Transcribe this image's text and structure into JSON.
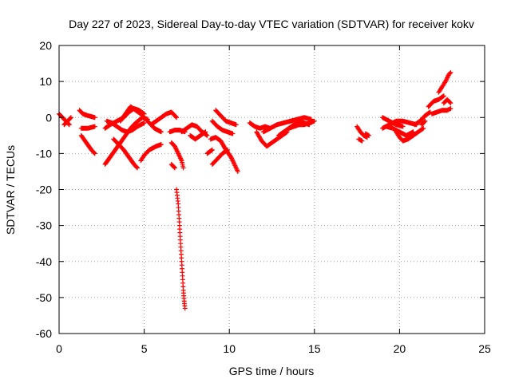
{
  "chart_data": {
    "type": "scatter",
    "title": "Day 227 of 2023, Sidereal Day-to-day VTEC variation (SDTVAR) for receiver kokv",
    "xlabel": "GPS time / hours",
    "ylabel": "SDTVAR / TECUs",
    "xlim": [
      0,
      25
    ],
    "ylim": [
      -60,
      20
    ],
    "xticks": [
      0,
      5,
      10,
      15,
      20,
      25
    ],
    "yticks": [
      -60,
      -50,
      -40,
      -30,
      -20,
      -10,
      0,
      10,
      20
    ],
    "grid": true,
    "marker": "+",
    "color": "#ff0000",
    "tracks": [
      [
        [
          0.0,
          1.0
        ],
        [
          0.2,
          0.0
        ],
        [
          0.4,
          -1.0
        ],
        [
          0.6,
          -2.0
        ]
      ],
      [
        [
          0.3,
          -2.0
        ],
        [
          0.5,
          -1.0
        ],
        [
          0.7,
          0.0
        ]
      ],
      [
        [
          1.2,
          2.0
        ],
        [
          1.4,
          1.0
        ],
        [
          1.7,
          0.5
        ],
        [
          2.1,
          0.0
        ]
      ],
      [
        [
          1.3,
          -3.0
        ],
        [
          1.7,
          -3.0
        ],
        [
          2.1,
          -2.5
        ]
      ],
      [
        [
          1.3,
          -5.0
        ],
        [
          1.6,
          -7.0
        ],
        [
          1.9,
          -9.0
        ],
        [
          2.1,
          -10.0
        ]
      ],
      [
        [
          2.7,
          -13.0
        ],
        [
          3.0,
          -11.0
        ],
        [
          3.3,
          -9.0
        ],
        [
          3.6,
          -7.0
        ],
        [
          3.9,
          -5.0
        ],
        [
          4.2,
          -3.0
        ],
        [
          4.5,
          -1.5
        ],
        [
          4.9,
          0.0
        ],
        [
          5.2,
          -0.5
        ]
      ],
      [
        [
          2.7,
          -3.0
        ],
        [
          3.0,
          -2.0
        ],
        [
          3.4,
          -1.0
        ],
        [
          3.8,
          0.0
        ],
        [
          4.1,
          1.5
        ],
        [
          4.4,
          2.5
        ],
        [
          4.7,
          2.0
        ],
        [
          5.0,
          1.0
        ]
      ],
      [
        [
          2.8,
          -1.0
        ],
        [
          3.1,
          -1.5
        ],
        [
          3.4,
          -2.5
        ],
        [
          3.7,
          -3.5
        ],
        [
          4.0,
          -4.0
        ],
        [
          4.3,
          -3.5
        ],
        [
          4.6,
          -2.5
        ],
        [
          5.0,
          -1.5
        ]
      ],
      [
        [
          3.2,
          -6.0
        ],
        [
          3.5,
          -7.5
        ],
        [
          3.8,
          -9.0
        ],
        [
          4.1,
          -11.0
        ],
        [
          4.4,
          -13.0
        ],
        [
          4.6,
          -14.0
        ]
      ],
      [
        [
          3.6,
          -1.0
        ],
        [
          3.9,
          1.0
        ],
        [
          4.2,
          3.0
        ],
        [
          4.5,
          2.0
        ],
        [
          4.8,
          1.0
        ],
        [
          5.2,
          -1.0
        ],
        [
          5.6,
          -3.0
        ],
        [
          6.0,
          -4.0
        ]
      ],
      [
        [
          4.8,
          -12.0
        ],
        [
          5.0,
          -10.5
        ],
        [
          5.3,
          -9.0
        ],
        [
          5.7,
          -8.0
        ],
        [
          6.0,
          -7.5
        ]
      ],
      [
        [
          5.4,
          -2.0
        ],
        [
          5.7,
          -1.0
        ],
        [
          6.0,
          0.0
        ],
        [
          6.3,
          1.0
        ],
        [
          6.6,
          1.5
        ],
        [
          6.9,
          0.0
        ]
      ],
      [
        [
          6.5,
          -4.0
        ],
        [
          6.8,
          -3.5
        ],
        [
          7.1,
          -3.5
        ],
        [
          7.4,
          -4.0
        ]
      ],
      [
        [
          6.6,
          -7.0
        ],
        [
          6.8,
          -8.0
        ],
        [
          7.0,
          -10.0
        ],
        [
          7.2,
          -12.0
        ],
        [
          7.3,
          -14.0
        ]
      ],
      [
        [
          6.6,
          -13.0
        ],
        [
          6.8,
          -14.0
        ]
      ],
      [
        [
          6.9,
          -20.0
        ],
        [
          7.0,
          -24.0
        ],
        [
          7.05,
          -28.0
        ],
        [
          7.1,
          -32.0
        ],
        [
          7.15,
          -36.0
        ],
        [
          7.2,
          -40.0
        ],
        [
          7.25,
          -44.0
        ],
        [
          7.3,
          -48.0
        ],
        [
          7.35,
          -51.0
        ],
        [
          7.4,
          -53.0
        ]
      ],
      [
        [
          7.2,
          -4.0
        ],
        [
          7.5,
          -3.0
        ],
        [
          7.8,
          -2.0
        ],
        [
          8.1,
          -2.5
        ],
        [
          8.4,
          -4.0
        ],
        [
          8.7,
          -5.0
        ]
      ],
      [
        [
          7.7,
          -5.0
        ],
        [
          8.0,
          -6.0
        ],
        [
          8.3,
          -5.0
        ],
        [
          8.6,
          -4.0
        ]
      ],
      [
        [
          8.7,
          -10.0
        ],
        [
          9.0,
          -9.0
        ]
      ],
      [
        [
          8.9,
          -6.0
        ],
        [
          9.2,
          -5.5
        ],
        [
          9.5,
          -6.5
        ],
        [
          9.8,
          -9.0
        ],
        [
          10.1,
          -11.0
        ],
        [
          10.3,
          -13.0
        ],
        [
          10.5,
          -15.0
        ]
      ],
      [
        [
          9.0,
          -13.0
        ],
        [
          9.3,
          -11.5
        ],
        [
          9.6,
          -10.0
        ],
        [
          9.9,
          -9.0
        ]
      ],
      [
        [
          9.0,
          -1.0
        ],
        [
          9.3,
          -2.5
        ],
        [
          9.6,
          -3.5
        ],
        [
          9.9,
          -4.0
        ],
        [
          10.2,
          -4.5
        ]
      ],
      [
        [
          9.2,
          2.0
        ],
        [
          9.4,
          1.0
        ],
        [
          9.6,
          0.0
        ],
        [
          9.8,
          -1.0
        ],
        [
          10.1,
          -1.5
        ],
        [
          10.4,
          -2.0
        ]
      ],
      [
        [
          11.2,
          -1.5
        ],
        [
          11.5,
          -2.5
        ],
        [
          11.8,
          -3.0
        ],
        [
          12.1,
          -2.5
        ],
        [
          12.4,
          -3.0
        ]
      ],
      [
        [
          11.6,
          -4.0
        ],
        [
          11.9,
          -6.5
        ],
        [
          12.2,
          -8.0
        ],
        [
          12.5,
          -7.0
        ],
        [
          12.8,
          -6.0
        ],
        [
          13.1,
          -5.0
        ],
        [
          13.4,
          -4.0
        ]
      ],
      [
        [
          12.0,
          -4.0
        ],
        [
          12.4,
          -3.0
        ],
        [
          12.8,
          -2.0
        ],
        [
          13.2,
          -1.5
        ],
        [
          13.6,
          -1.0
        ],
        [
          14.0,
          -0.5
        ],
        [
          14.4,
          0.0
        ],
        [
          14.8,
          -0.5
        ]
      ],
      [
        [
          12.9,
          -5.0
        ],
        [
          13.2,
          -4.0
        ],
        [
          13.5,
          -3.0
        ],
        [
          13.8,
          -2.5
        ],
        [
          14.1,
          -2.0
        ],
        [
          14.4,
          -2.0
        ],
        [
          14.7,
          -1.5
        ],
        [
          15.0,
          -1.0
        ]
      ],
      [
        [
          13.5,
          -3.0
        ],
        [
          13.8,
          -2.0
        ],
        [
          14.1,
          -1.0
        ],
        [
          14.4,
          -1.5
        ],
        [
          14.7,
          -2.0
        ]
      ],
      [
        [
          17.5,
          -2.5
        ],
        [
          17.7,
          -4.0
        ],
        [
          17.9,
          -5.0
        ],
        [
          18.1,
          -5.5
        ]
      ],
      [
        [
          17.6,
          -6.0
        ],
        [
          17.8,
          -6.5
        ]
      ],
      [
        [
          18.0,
          -4.5
        ],
        [
          18.2,
          -5.0
        ]
      ],
      [
        [
          19.0,
          -3.0
        ],
        [
          19.4,
          -2.0
        ],
        [
          19.8,
          -1.0
        ],
        [
          20.2,
          -1.0
        ],
        [
          20.6,
          -1.5
        ],
        [
          21.0,
          -2.0
        ]
      ],
      [
        [
          19.2,
          -2.5
        ],
        [
          19.6,
          -3.0
        ],
        [
          20.0,
          -4.0
        ],
        [
          20.4,
          -5.0
        ],
        [
          20.8,
          -4.0
        ]
      ],
      [
        [
          19.0,
          0.0
        ],
        [
          19.4,
          -1.0
        ],
        [
          19.8,
          -2.0
        ],
        [
          20.2,
          -2.5
        ]
      ],
      [
        [
          19.8,
          -4.0
        ],
        [
          20.0,
          -5.5
        ],
        [
          20.2,
          -6.5
        ],
        [
          20.5,
          -6.0
        ],
        [
          20.8,
          -5.0
        ],
        [
          21.1,
          -4.0
        ],
        [
          21.4,
          -3.0
        ]
      ],
      [
        [
          20.9,
          -2.0
        ],
        [
          21.2,
          -1.0
        ],
        [
          21.5,
          0.5
        ],
        [
          21.8,
          1.5
        ]
      ],
      [
        [
          21.3,
          -2.0
        ],
        [
          21.5,
          -1.0
        ]
      ],
      [
        [
          21.7,
          3.0
        ],
        [
          22.0,
          4.5
        ],
        [
          22.3,
          5.0
        ],
        [
          22.6,
          6.0
        ]
      ],
      [
        [
          21.9,
          1.0
        ],
        [
          22.2,
          1.5
        ],
        [
          22.5,
          2.0
        ],
        [
          22.8,
          2.0
        ],
        [
          23.0,
          2.5
        ]
      ],
      [
        [
          22.3,
          7.0
        ],
        [
          22.5,
          8.5
        ],
        [
          22.7,
          10.0
        ],
        [
          22.9,
          12.0
        ],
        [
          23.0,
          12.5
        ]
      ],
      [
        [
          22.6,
          4.0
        ],
        [
          22.8,
          5.0
        ],
        [
          23.0,
          4.0
        ]
      ]
    ]
  }
}
